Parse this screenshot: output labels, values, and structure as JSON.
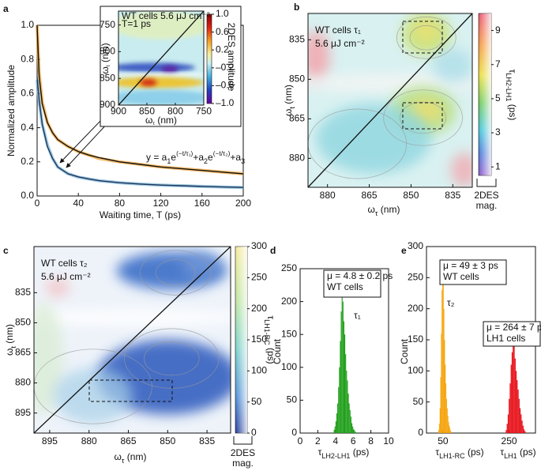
{
  "chart_data": [
    {
      "panel": "a",
      "type": "line",
      "xlabel": "Waiting time, T (ps)",
      "ylabel": "Normalized amplitude",
      "xlim": [
        0,
        200
      ],
      "ylim": [
        0,
        1.0
      ],
      "xticks": [
        0,
        40,
        80,
        120,
        160,
        200
      ],
      "yticks": [
        {
          "value": 0,
          "label": "0.0"
        },
        {
          "value": 0.2,
          "label": "0.2"
        },
        {
          "value": 0.4,
          "label": "0.4"
        },
        {
          "value": 0.6,
          "label": "0.6"
        },
        {
          "value": 0.8,
          "label": "0.8"
        },
        {
          "value": 1.0,
          "label": "1.0"
        }
      ],
      "x": [
        0,
        2,
        5,
        10,
        15,
        20,
        30,
        40,
        50,
        60,
        80,
        100,
        120,
        140,
        160,
        180,
        200
      ],
      "series": [
        {
          "kind": "data",
          "color": "#f3a53a",
          "values": [
            1.0,
            0.72,
            0.55,
            0.43,
            0.37,
            0.33,
            0.29,
            0.26,
            0.24,
            0.22,
            0.2,
            0.185,
            0.17,
            0.16,
            0.15,
            0.14,
            0.13
          ]
        },
        {
          "kind": "fit",
          "color": "#111111",
          "values": [
            1.0,
            0.7,
            0.54,
            0.43,
            0.37,
            0.33,
            0.29,
            0.26,
            0.24,
            0.225,
            0.2,
            0.185,
            0.17,
            0.16,
            0.15,
            0.14,
            0.13
          ]
        },
        {
          "kind": "data",
          "color": "#7fb8dc",
          "values": [
            0.68,
            0.55,
            0.42,
            0.3,
            0.22,
            0.17,
            0.13,
            0.11,
            0.1,
            0.09,
            0.078,
            0.07,
            0.064,
            0.06,
            0.056,
            0.053,
            0.05
          ]
        },
        {
          "kind": "fit",
          "color": "#1d3557",
          "values": [
            0.7,
            0.56,
            0.42,
            0.29,
            0.22,
            0.17,
            0.13,
            0.112,
            0.1,
            0.09,
            0.078,
            0.07,
            0.064,
            0.06,
            0.056,
            0.053,
            0.05
          ]
        }
      ],
      "equation": [
        {
          "t": "y = a"
        },
        {
          "t": "1",
          "sub": true
        },
        {
          "t": "e"
        },
        {
          "t": "(−t/τ₁)",
          "sup": true
        },
        {
          "t": "+a"
        },
        {
          "t": "2",
          "sub": true
        },
        {
          "t": "e"
        },
        {
          "t": "(−t/τ₂)",
          "sup": true
        },
        {
          "t": "+a"
        },
        {
          "t": "3",
          "sub": true
        }
      ],
      "inset": {
        "type": "heatmap",
        "xlabel": [
          {
            "t": "ω"
          },
          {
            "t": "τ",
            "sub": true
          },
          {
            "t": " (nm)"
          }
        ],
        "ylabel": [
          {
            "t": "ω"
          },
          {
            "t": "t",
            "sub": true
          },
          {
            "t": " (nm)"
          }
        ],
        "xlim": [
          900,
          750
        ],
        "ylim": [
          900,
          724
        ],
        "xticks": [
          900,
          850,
          800,
          750
        ],
        "yticks": [
          750,
          800,
          850,
          900
        ],
        "annotations": [
          "WT cells  5.6 μJ cm⁻²",
          "T=1 ps"
        ],
        "colorbar": {
          "label": "2DES amplitude",
          "lim": [
            -1.0,
            1.0
          ],
          "ticks": [
            {
              "value": 1.0,
              "label": "1.0"
            },
            {
              "value": 0.6,
              "label": "0.6"
            },
            {
              "value": 0.2,
              "label": "0.2"
            },
            {
              "value": -0.2,
              "label": "–0.2"
            },
            {
              "value": -0.6,
              "label": "–0.6"
            },
            {
              "value": -1.0,
              "label": "–1.0"
            }
          ]
        }
      }
    },
    {
      "panel": "b",
      "type": "heatmap",
      "xlabel": [
        {
          "t": "ω"
        },
        {
          "t": "τ",
          "sub": true
        },
        {
          "t": " (nm)"
        }
      ],
      "ylabel": [
        {
          "t": "ω"
        },
        {
          "t": "t",
          "sub": true
        },
        {
          "t": " (nm)"
        }
      ],
      "xlim": [
        887,
        828
      ],
      "ylim": [
        891,
        825
      ],
      "xticks": [
        880,
        865,
        850,
        835
      ],
      "yticks": [
        835,
        850,
        865,
        880
      ],
      "annotations": [
        "WT cells τ₁",
        "5.6 μJ cm⁻²"
      ],
      "colorbar": {
        "label": [
          {
            "t": "τ"
          },
          {
            "t": "LH2-LH1",
            "sub": true
          },
          {
            "t": " (ps)"
          }
        ],
        "lim": [
          0.5,
          10
        ],
        "ticks": [
          1,
          3,
          5,
          7,
          9
        ]
      },
      "magnitude_label": [
        "2DES",
        "mag."
      ]
    },
    {
      "panel": "c",
      "type": "heatmap",
      "xlabel": [
        {
          "t": "ω"
        },
        {
          "t": "τ",
          "sub": true
        },
        {
          "t": " (nm)"
        }
      ],
      "ylabel": [
        {
          "t": "ω"
        },
        {
          "t": "t",
          "sub": true
        },
        {
          "t": " (nm)"
        }
      ],
      "xlim": [
        901,
        826
      ],
      "ylim": [
        905,
        812
      ],
      "xticks": [
        895,
        880,
        865,
        850,
        835
      ],
      "yticks": [
        835,
        850,
        865,
        880,
        895
      ],
      "annotations": [
        "WT cells τ₂",
        "5.6 μJ cm⁻²"
      ],
      "colorbar": {
        "label": [
          {
            "t": "τ"
          },
          {
            "t": "LH1-RC",
            "sub": true
          },
          {
            "t": " (ps)"
          }
        ],
        "lim": [
          0,
          300
        ],
        "ticks": [
          0,
          50,
          100,
          150,
          200,
          250,
          300
        ]
      },
      "magnitude_label": [
        "2DES",
        "mag."
      ]
    },
    {
      "panel": "d",
      "type": "histogram",
      "ylabel": "Count",
      "xlim": [
        0,
        10
      ],
      "ylim": [
        0,
        250
      ],
      "xticks": [
        0,
        2,
        4,
        6,
        8,
        10
      ],
      "yticks": [
        0,
        50,
        100,
        150,
        200,
        250
      ],
      "series": [
        {
          "color": "#22a01c",
          "label": [
            {
              "t": "τ"
            },
            {
              "t": "LH2-LH1",
              "sub": true
            },
            {
              "t": " (ps)"
            }
          ],
          "bins": [
            3.8,
            3.9,
            4.0,
            4.1,
            4.2,
            4.3,
            4.4,
            4.5,
            4.6,
            4.7,
            4.8,
            4.9,
            5.0,
            5.1,
            5.2,
            5.3,
            5.4,
            5.5,
            5.6,
            5.7,
            5.8,
            5.9,
            6.0,
            6.1,
            6.2,
            6.3,
            6.4
          ],
          "values": [
            5,
            10,
            18,
            30,
            45,
            70,
            100,
            140,
            185,
            220,
            200,
            170,
            150,
            120,
            95,
            80,
            60,
            45,
            35,
            25,
            15,
            10,
            6,
            4,
            2,
            1
          ]
        }
      ],
      "boxes": [
        [
          "μ = 4.8 ± 0.2 ps",
          "WT cells"
        ]
      ],
      "marks": [
        "τ₁"
      ]
    },
    {
      "panel": "e",
      "type": "histogram",
      "ylabel": "Count",
      "xlim": [
        0,
        330
      ],
      "ylim": [
        0,
        300
      ],
      "xticks": [
        50,
        250
      ],
      "yticks": [
        0,
        50,
        100,
        150,
        200,
        250,
        300
      ],
      "series": [
        {
          "color": "#f5a000",
          "label": [
            {
              "t": "τ"
            },
            {
              "t": "LH1-RC",
              "sub": true
            },
            {
              "t": " (ps)"
            }
          ],
          "bins": [
            36,
            38,
            40,
            42,
            44,
            46,
            48,
            50,
            52,
            54,
            56,
            58,
            60,
            62,
            64,
            66,
            68,
            70,
            72,
            74,
            76
          ],
          "values": [
            5,
            15,
            40,
            90,
            160,
            230,
            280,
            250,
            200,
            150,
            110,
            80,
            55,
            40,
            28,
            18,
            12,
            8,
            4,
            2
          ]
        },
        {
          "color": "#e8141c",
          "label": [
            {
              "t": "τ"
            },
            {
              "t": "LH1",
              "sub": true
            },
            {
              "t": " (ps)"
            }
          ],
          "bins": [
            240,
            243,
            246,
            249,
            252,
            255,
            258,
            261,
            264,
            267,
            270,
            273,
            276,
            279,
            282,
            285,
            288,
            291,
            294,
            297,
            300
          ],
          "values": [
            5,
            15,
            30,
            55,
            80,
            110,
            130,
            150,
            140,
            120,
            100,
            85,
            70,
            55,
            40,
            30,
            20,
            12,
            6,
            3
          ]
        }
      ],
      "boxes": [
        [
          "μ = 49 ± 3 ps",
          "WT cells"
        ],
        [
          "μ = 264 ± 7 ps",
          "LH1 cells"
        ]
      ],
      "marks": [
        "τ₂"
      ]
    }
  ]
}
